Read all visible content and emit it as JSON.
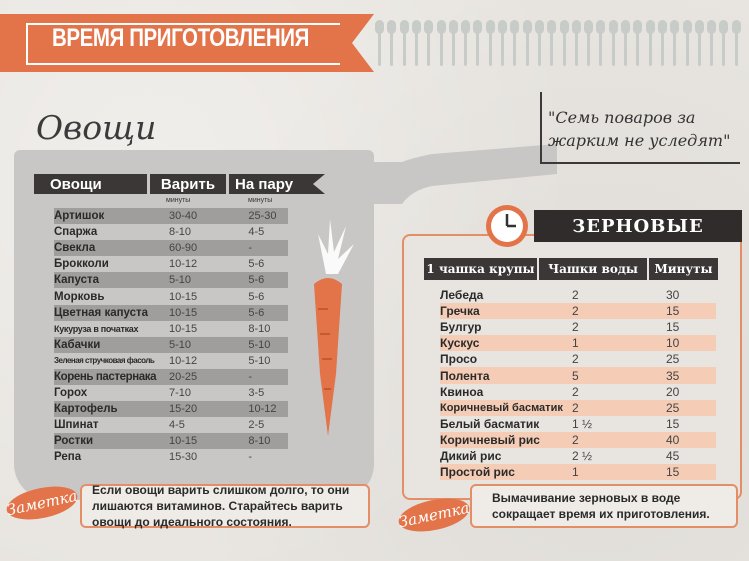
{
  "header": {
    "title": "ВРЕМЯ ПРИГОТОВЛЕНИЯ"
  },
  "vegetables": {
    "title": "Овощи",
    "columns": [
      "Овощи",
      "Варить",
      "На пару"
    ],
    "sublabel_boil": "минуты",
    "sublabel_steam": "минуты",
    "rows": [
      {
        "name": "Артишок",
        "boil": "30-40",
        "steam": "25-30"
      },
      {
        "name": "Спаржа",
        "boil": "8-10",
        "steam": "4-5"
      },
      {
        "name": "Свекла",
        "boil": "60-90",
        "steam": "-"
      },
      {
        "name": "Брокколи",
        "boil": "10-12",
        "steam": "5-6"
      },
      {
        "name": "Капуста",
        "boil": "5-10",
        "steam": "5-6"
      },
      {
        "name": "Морковь",
        "boil": "10-15",
        "steam": "5-6"
      },
      {
        "name": "Цветная капуста",
        "boil": "10-15",
        "steam": "5-6"
      },
      {
        "name": "Кукуруза в початках",
        "boil": "10-15",
        "steam": "8-10"
      },
      {
        "name": "Кабачки",
        "boil": "5-10",
        "steam": "5-10"
      },
      {
        "name": "Зеленая стручковая фасоль",
        "boil": "10-12",
        "steam": "5-10"
      },
      {
        "name": "Корень пастернака",
        "boil": "20-25",
        "steam": "-"
      },
      {
        "name": "Горох",
        "boil": "7-10",
        "steam": "3-5"
      },
      {
        "name": "Картофель",
        "boil": "15-20",
        "steam": "10-12"
      },
      {
        "name": "Шпинат",
        "boil": "4-5",
        "steam": "2-5"
      },
      {
        "name": "Ростки",
        "boil": "10-15",
        "steam": "8-10"
      },
      {
        "name": "Репа",
        "boil": "15-30",
        "steam": "-"
      }
    ],
    "note_badge": "Заметка",
    "note": "Если овощи варить слишком долго, то они лишаются витаминов. Старайтесь варить овощи до идеального состояния."
  },
  "quote": {
    "line1": "\"Семь поваров за",
    "line2": "жарким не уследят\""
  },
  "grains": {
    "title": "ЗЕРНОВЫЕ",
    "columns": [
      "1 чашка крупы",
      "Чашки воды",
      "Минуты"
    ],
    "rows": [
      {
        "name": "Лебеда",
        "water": "2",
        "minutes": "30"
      },
      {
        "name": "Гречка",
        "water": "2",
        "minutes": "15"
      },
      {
        "name": "Булгур",
        "water": "2",
        "minutes": "15"
      },
      {
        "name": "Кускус",
        "water": "1",
        "minutes": "10"
      },
      {
        "name": "Просо",
        "water": "2",
        "minutes": "25"
      },
      {
        "name": "Полента",
        "water": "5",
        "minutes": "35"
      },
      {
        "name": "Квиноа",
        "water": "2",
        "minutes": "20"
      },
      {
        "name": "Коричневый басматик",
        "water": "2",
        "minutes": "25"
      },
      {
        "name": "Белый басматик",
        "water": "1 ½",
        "minutes": "15"
      },
      {
        "name": "Коричневый рис",
        "water": "2",
        "minutes": "40"
      },
      {
        "name": "Дикий рис",
        "water": "2 ½",
        "minutes": "45"
      },
      {
        "name": "Простой рис",
        "water": "1",
        "minutes": "15"
      }
    ],
    "note_badge": "Заметка",
    "note": "Вымачивание зерновых в воде сокращает время их приготовления."
  },
  "colors": {
    "accent": "#e3744a",
    "dark": "#3a3736",
    "pot": "#c8c7c6",
    "shade_grey": "#a09e9c",
    "shade_peach": "#f5cdb6"
  }
}
